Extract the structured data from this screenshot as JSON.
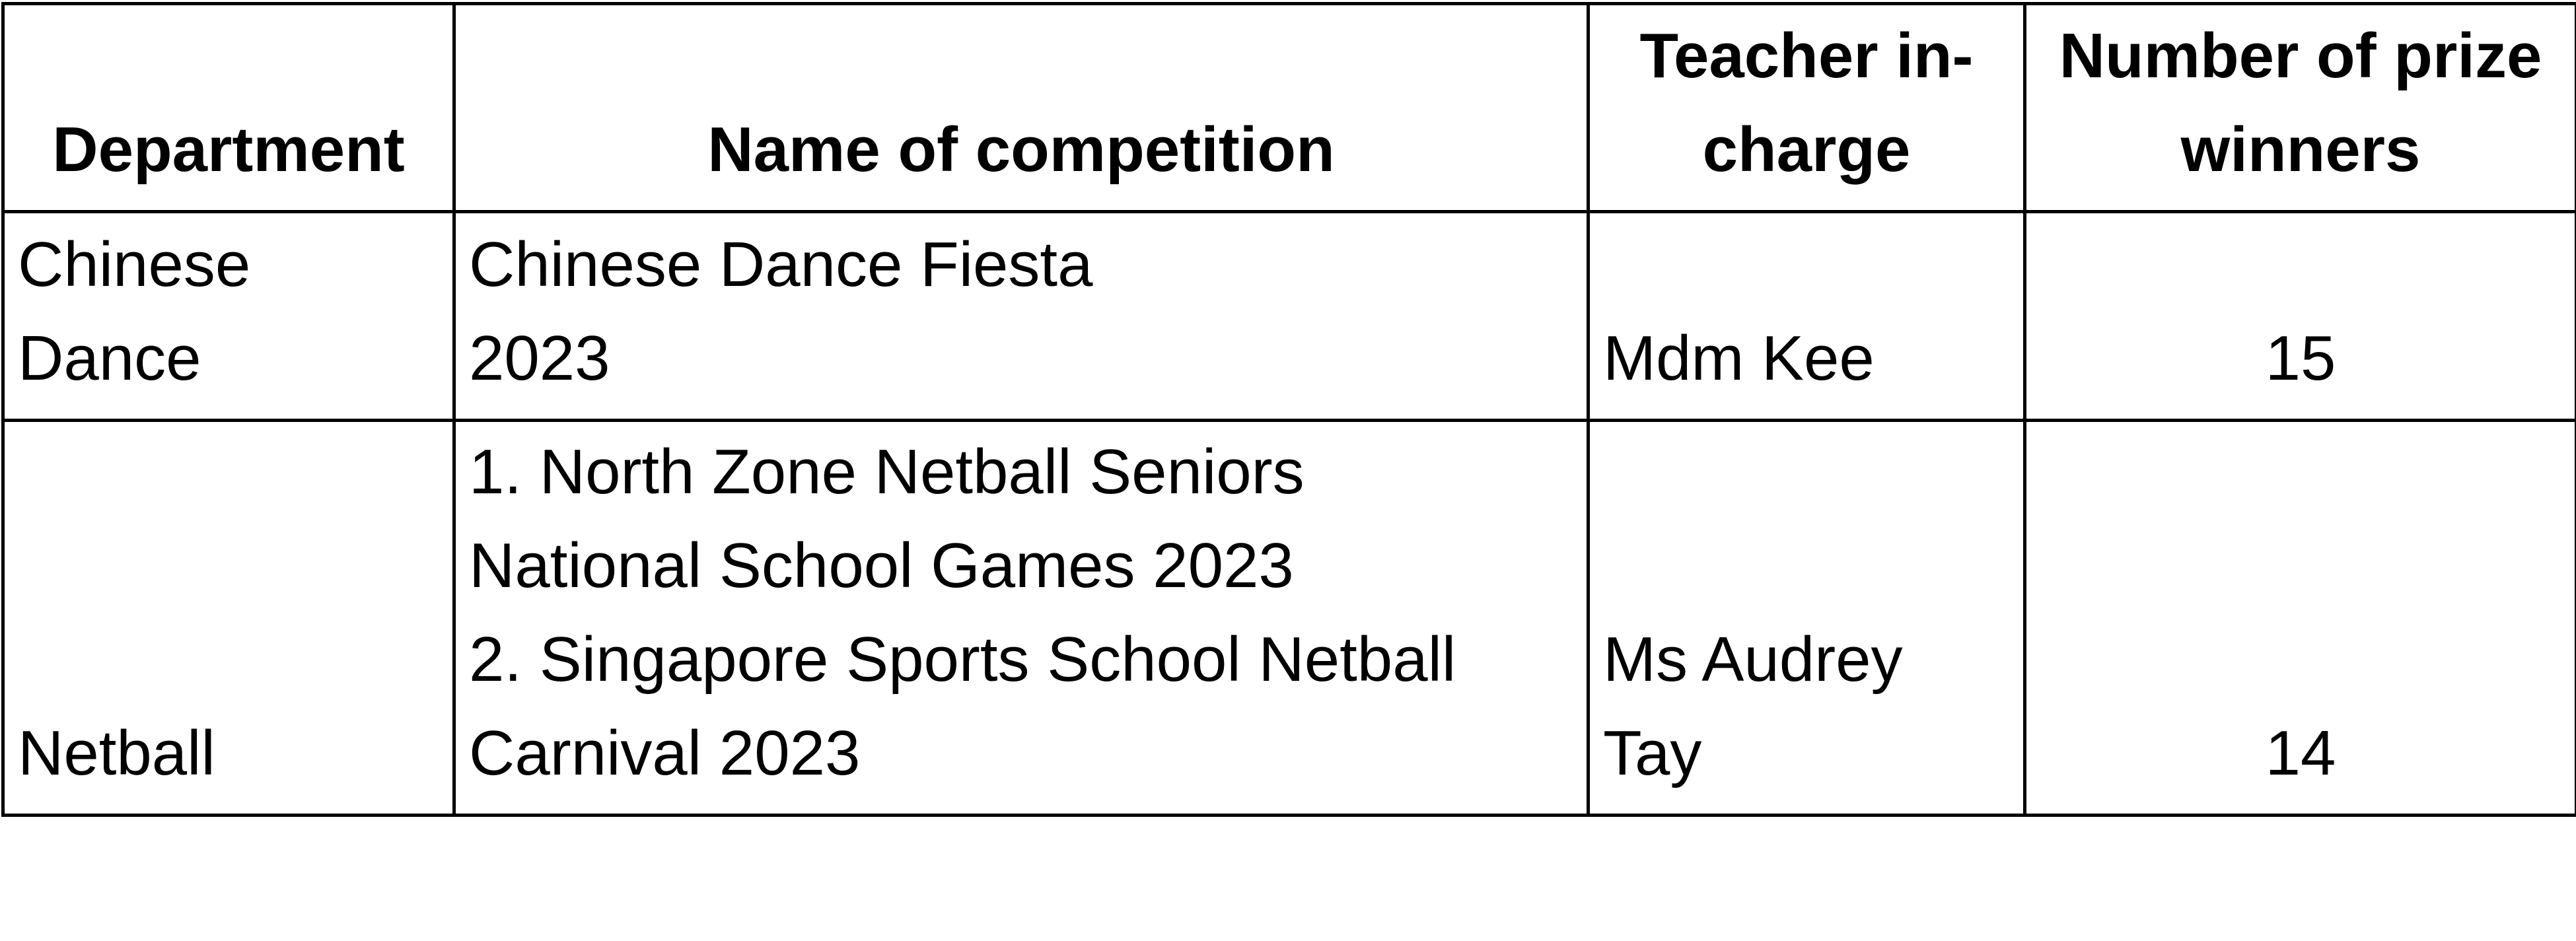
{
  "table": {
    "headers": {
      "department": "Department",
      "competition": "Name of competition",
      "teacher": "Teacher in-\ncharge",
      "winners": "Number of prize\nwinners"
    },
    "rows": [
      {
        "department": "Chinese\nDance",
        "competition": "Chinese Dance Fiesta\n2023",
        "teacher": "Mdm Kee",
        "winners": "15"
      },
      {
        "department": "Netball",
        "competition": "1. North Zone Netball Seniors\nNational School Games 2023\n2. Singapore Sports School Netball\nCarnival 2023",
        "teacher": "Ms Audrey\nTay",
        "winners": "14"
      }
    ]
  }
}
